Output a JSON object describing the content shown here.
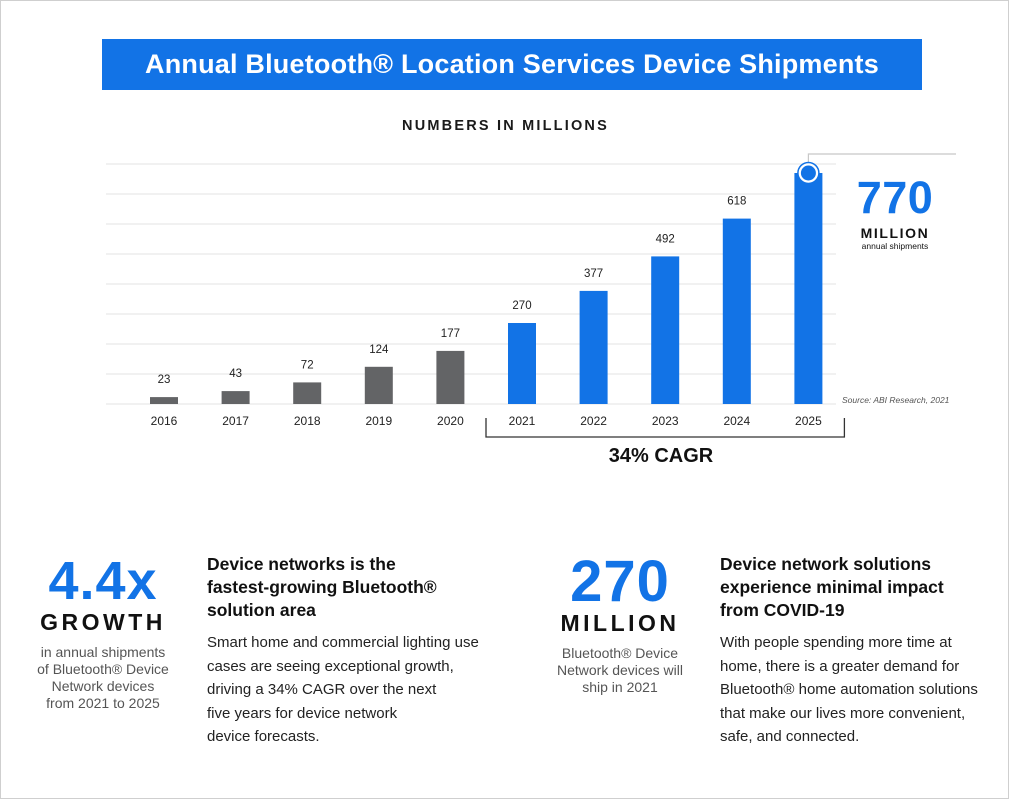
{
  "header": {
    "title": "Annual Bluetooth® Location Services Device Shipments"
  },
  "chart_data": {
    "type": "bar",
    "title": "NUMBERS IN MILLIONS",
    "categories": [
      "2016",
      "2017",
      "2018",
      "2019",
      "2020",
      "2021",
      "2022",
      "2023",
      "2024",
      "2025"
    ],
    "values": [
      23,
      43,
      72,
      124,
      177,
      270,
      377,
      492,
      618,
      770
    ],
    "data_labels": [
      "23",
      "43",
      "72",
      "124",
      "177",
      "270",
      "377",
      "492",
      "618",
      ""
    ],
    "highlight_from_index": 5,
    "colors": {
      "historical": "#636466",
      "forecast": "#1273e6",
      "grid": "#e3e3e3"
    },
    "ylim": [
      0,
      800
    ],
    "grid": true,
    "bracket_label": "34% CAGR",
    "callout": {
      "number": "770",
      "unit": "MILLION",
      "caption": "annual shipments"
    },
    "source": "Source: ABI Research, 2021"
  },
  "stats": [
    {
      "number": "4.4x",
      "unit": "GROWTH",
      "desc": [
        "in annual shipments",
        "of Bluetooth® Device",
        "Network devices",
        "from 2021 to 2025"
      ],
      "heading": [
        "Device networks is the",
        "fastest-growing Bluetooth®",
        "solution area"
      ],
      "body": [
        "Smart home and commercial lighting use",
        "cases are seeing exceptional growth,",
        "driving a 34% CAGR over the next",
        "five years for device network",
        "device forecasts."
      ]
    },
    {
      "number": "270",
      "unit": "MILLION",
      "desc": [
        "Bluetooth® Device",
        "Network devices will",
        "ship in 2021"
      ],
      "heading": [
        "Device network solutions",
        "experience minimal impact",
        "from COVID-19"
      ],
      "body": [
        "With people spending more time at",
        "home, there is a greater demand for",
        "Bluetooth® home automation solutions",
        "that make our lives more convenient,",
        "safe, and connected."
      ]
    }
  ],
  "accent_color": "#1273e6"
}
